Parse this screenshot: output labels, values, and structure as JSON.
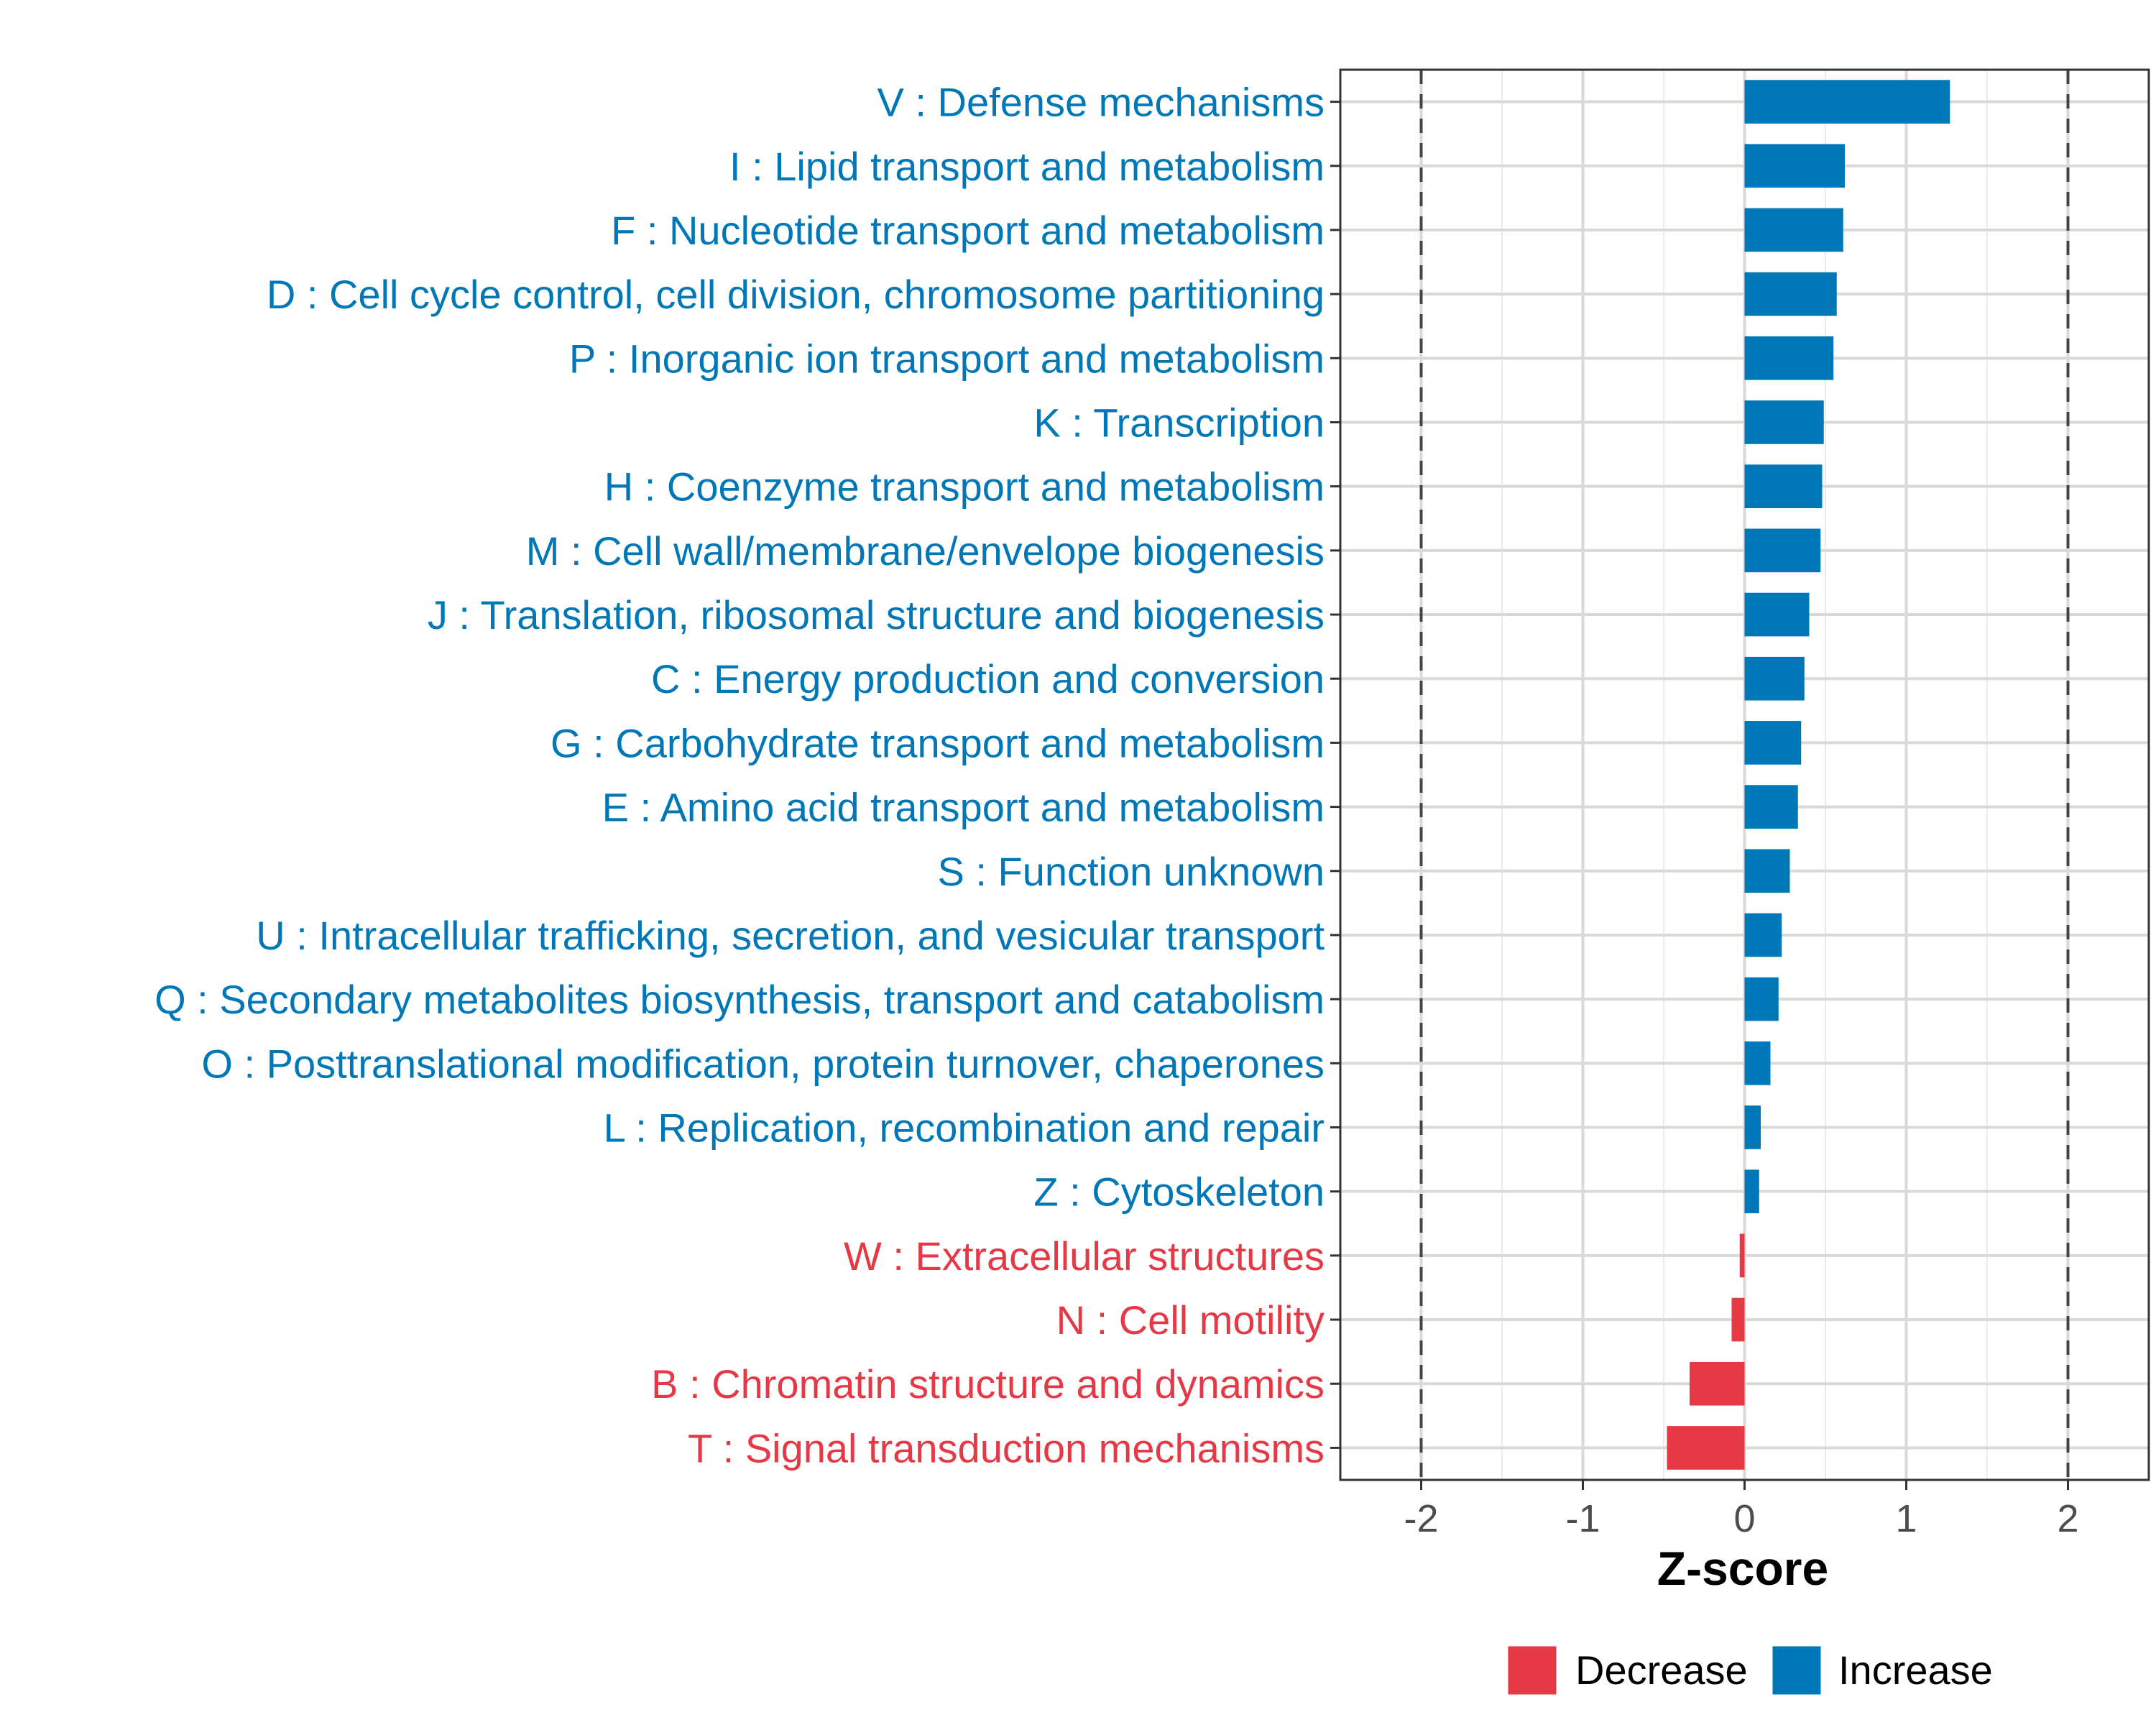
{
  "chart_data": {
    "type": "bar",
    "orientation": "horizontal",
    "title": "",
    "xlabel": "Z-score",
    "ylabel": "",
    "xlim": [
      -2.5,
      2.5
    ],
    "xticks": [
      -2,
      -1,
      0,
      1,
      2
    ],
    "xtick_labels": [
      "-2",
      "-1",
      "0",
      "1",
      "2"
    ],
    "reference_lines": [
      -2,
      2
    ],
    "grid": true,
    "legend_position": "bottom",
    "colors": {
      "Decrease": "#e63946",
      "Increase": "#0077b6"
    },
    "legend": [
      {
        "label": "Decrease",
        "color": "#e63946"
      },
      {
        "label": "Increase",
        "color": "#0077b6"
      }
    ],
    "categories": [
      "V : Defense mechanisms",
      "I : Lipid transport and metabolism",
      "F : Nucleotide transport and metabolism",
      "D : Cell cycle control, cell division, chromosome partitioning",
      "P : Inorganic ion transport and metabolism",
      "K : Transcription",
      "H : Coenzyme transport and metabolism",
      "M : Cell wall/membrane/envelope biogenesis",
      "J : Translation, ribosomal structure and biogenesis",
      "C : Energy production and conversion",
      "G : Carbohydrate transport and metabolism",
      "E : Amino acid transport and metabolism",
      "S : Function unknown",
      "U : Intracellular trafficking, secretion, and vesicular transport",
      "Q : Secondary metabolites biosynthesis, transport and catabolism",
      "O : Posttranslational modification, protein turnover, chaperones",
      "L : Replication, recombination and repair",
      "Z : Cytoskeleton",
      "W : Extracellular structures",
      "N : Cell motility",
      "B : Chromatin structure and dynamics",
      "T : Signal transduction mechanisms"
    ],
    "values": [
      1.27,
      0.62,
      0.61,
      0.57,
      0.55,
      0.49,
      0.48,
      0.47,
      0.4,
      0.37,
      0.35,
      0.33,
      0.28,
      0.23,
      0.21,
      0.16,
      0.1,
      0.09,
      -0.03,
      -0.08,
      -0.34,
      -0.48
    ]
  }
}
